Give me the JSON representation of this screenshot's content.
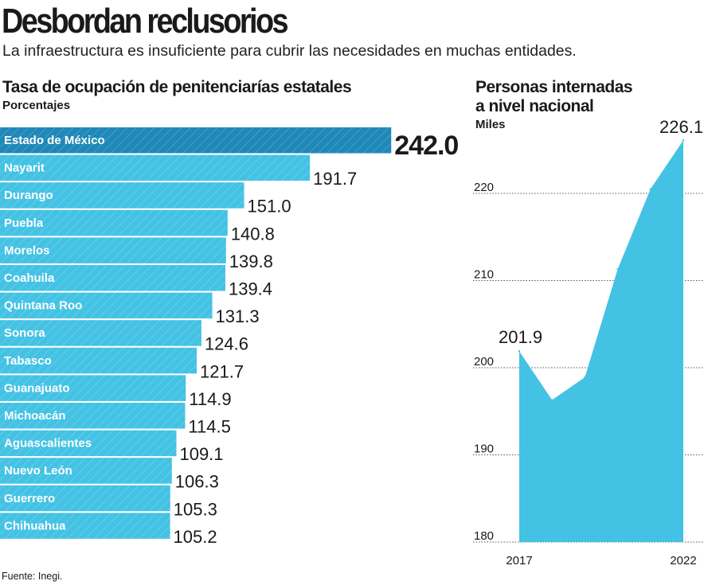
{
  "header": {
    "title": "Desbordan reclusorios",
    "subtitle": "La infraestructura es insuficiente para cubrir las necesidades en muchas entidades."
  },
  "colors": {
    "bar": "#43c2e4",
    "bar_highlight": "#1f88b8",
    "area": "#43c2e4",
    "text": "#1a1a1a"
  },
  "source": "Fuente: Inegi.",
  "chart_data": [
    {
      "type": "bar",
      "orientation": "horizontal",
      "title": "Tasa de ocupación de penitenciarías estatales",
      "unit": "Porcentajes",
      "highlight_index": 0,
      "categories": [
        "Estado de México",
        "Nayarit",
        "Durango",
        "Puebla",
        "Morelos",
        "Coahuila",
        "Quintana Roo",
        "Sonora",
        "Tabasco",
        "Guanajuato",
        "Michoacán",
        "Aguascalientes",
        "Nuevo León",
        "Guerrero",
        "Chihuahua"
      ],
      "values": [
        242.0,
        191.7,
        151.0,
        140.8,
        139.8,
        139.4,
        131.3,
        124.6,
        121.7,
        114.9,
        114.5,
        109.1,
        106.3,
        105.3,
        105.2
      ],
      "value_labels": [
        "242.0",
        "191.7",
        "151.0",
        "140.8",
        "139.8",
        "139.4",
        "131.3",
        "124.6",
        "121.7",
        "114.9",
        "114.5",
        "109.1",
        "106.3",
        "105.3",
        "105.2"
      ]
    },
    {
      "type": "area",
      "title_lines": [
        "Personas internadas",
        "a nivel nacional"
      ],
      "unit": "Miles",
      "x": [
        2017,
        2018,
        2019,
        2020,
        2021,
        2022
      ],
      "y": [
        201.9,
        196.3,
        198.9,
        211.3,
        220.5,
        226.1
      ],
      "x_tick_labels": [
        "2017",
        "2022"
      ],
      "y_ticks": [
        180,
        190,
        200,
        210,
        220
      ],
      "y_tick_labels": [
        "180",
        "190",
        "200",
        "210",
        "220"
      ],
      "ylim": [
        180,
        229
      ],
      "start_label": "201.9",
      "end_label": "226.1"
    }
  ]
}
